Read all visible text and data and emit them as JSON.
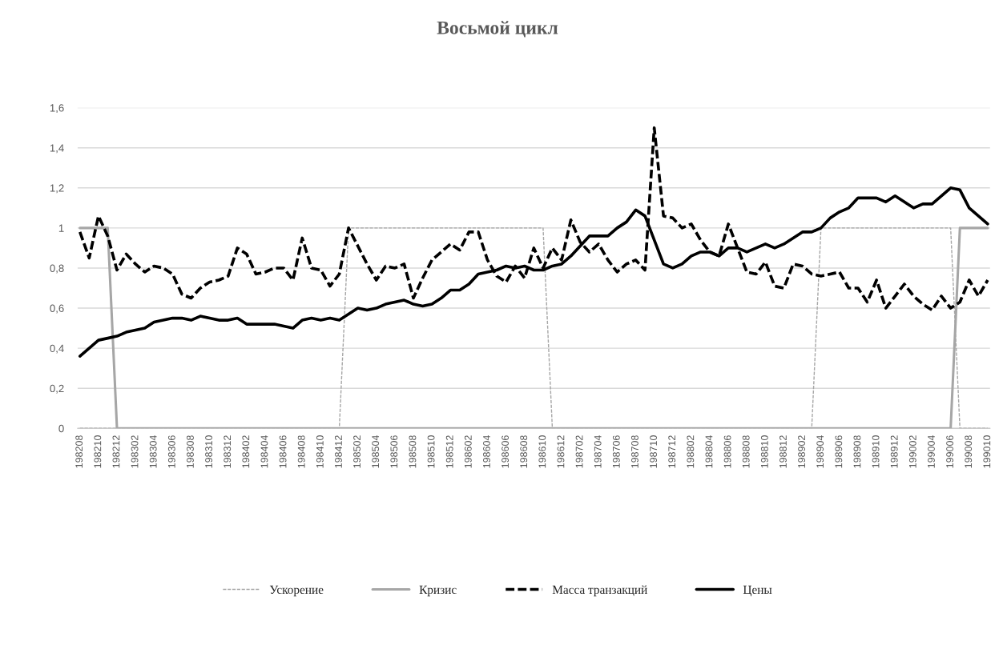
{
  "chart_data": {
    "type": "line",
    "title": "Восьмой цикл",
    "categories": [
      "198208",
      null,
      "198210",
      null,
      "198212",
      null,
      "198302",
      null,
      "198304",
      null,
      "198306",
      null,
      "198308",
      null,
      "198310",
      null,
      "198312",
      null,
      "198402",
      null,
      "198404",
      null,
      "198406",
      null,
      "198408",
      null,
      "198410",
      null,
      "198412",
      null,
      "198502",
      null,
      "198504",
      null,
      "198506",
      null,
      "198508",
      null,
      "198510",
      null,
      "198512",
      null,
      "198602",
      null,
      "198604",
      null,
      "198606",
      null,
      "198608",
      null,
      "198610",
      null,
      "198612",
      null,
      "198702",
      null,
      "198704",
      null,
      "198706",
      null,
      "198708",
      null,
      "198710",
      null,
      "198712",
      null,
      "198802",
      null,
      "198804",
      null,
      "198806",
      null,
      "198808",
      null,
      "198810",
      null,
      "198812",
      null,
      "198902",
      null,
      "198904",
      null,
      "198906",
      null,
      "198908",
      null,
      "198910",
      null,
      "198912",
      null,
      "199002",
      null,
      "199004",
      null,
      "199006",
      null,
      "199008",
      null,
      "199010"
    ],
    "series": [
      {
        "name": "Ускорение",
        "color": "#a6a6a6",
        "line_style": "dashed",
        "values": [
          0,
          0,
          0,
          0,
          0,
          0,
          0,
          0,
          0,
          0,
          0,
          0,
          0,
          0,
          0,
          0,
          0,
          0,
          0,
          0,
          0,
          0,
          0,
          0,
          0,
          0,
          0,
          0,
          0,
          1,
          1,
          1,
          1,
          1,
          1,
          1,
          1,
          1,
          1,
          1,
          1,
          1,
          1,
          1,
          1,
          1,
          1,
          1,
          1,
          1,
          1,
          0,
          0,
          0,
          0,
          0,
          0,
          0,
          0,
          0,
          0,
          0,
          0,
          0,
          0,
          0,
          0,
          0,
          0,
          0,
          0,
          0,
          0,
          0,
          0,
          0,
          0,
          0,
          0,
          0,
          1,
          1,
          1,
          1,
          1,
          1,
          1,
          1,
          1,
          1,
          1,
          1,
          1,
          1,
          1,
          0,
          0,
          0,
          0
        ]
      },
      {
        "name": "Кризис",
        "color": "#a6a6a6",
        "line_style": "solid",
        "values": [
          1,
          1,
          1,
          1,
          0,
          0,
          0,
          0,
          0,
          0,
          0,
          0,
          0,
          0,
          0,
          0,
          0,
          0,
          0,
          0,
          0,
          0,
          0,
          0,
          0,
          0,
          0,
          0,
          0,
          0,
          0,
          0,
          0,
          0,
          0,
          0,
          0,
          0,
          0,
          0,
          0,
          0,
          0,
          0,
          0,
          0,
          0,
          0,
          0,
          0,
          0,
          0,
          0,
          0,
          0,
          0,
          0,
          0,
          0,
          0,
          0,
          0,
          0,
          0,
          0,
          0,
          0,
          0,
          0,
          0,
          0,
          0,
          0,
          0,
          0,
          0,
          0,
          0,
          0,
          0,
          0,
          0,
          0,
          0,
          0,
          0,
          0,
          0,
          0,
          0,
          0,
          0,
          0,
          0,
          0,
          1,
          1,
          1,
          1
        ]
      },
      {
        "name": "Масса транзакций",
        "color": "#000000",
        "line_style": "dashed",
        "values": [
          0.98,
          0.85,
          1.06,
          0.96,
          0.79,
          0.87,
          0.82,
          0.78,
          0.81,
          0.8,
          0.77,
          0.67,
          0.65,
          0.7,
          0.73,
          0.74,
          0.76,
          0.9,
          0.87,
          0.77,
          0.78,
          0.8,
          0.8,
          0.74,
          0.95,
          0.8,
          0.79,
          0.71,
          0.77,
          1.0,
          0.91,
          0.82,
          0.74,
          0.81,
          0.8,
          0.82,
          0.65,
          0.75,
          0.84,
          0.88,
          0.92,
          0.89,
          0.98,
          0.98,
          0.84,
          0.76,
          0.73,
          0.81,
          0.75,
          0.9,
          0.8,
          0.9,
          0.84,
          1.04,
          0.93,
          0.88,
          0.92,
          0.84,
          0.78,
          0.82,
          0.84,
          0.79,
          1.5,
          1.06,
          1.05,
          1.0,
          1.02,
          0.94,
          0.88,
          0.86,
          1.02,
          0.9,
          0.78,
          0.77,
          0.83,
          0.71,
          0.7,
          0.82,
          0.81,
          0.77,
          0.76,
          0.77,
          0.78,
          0.7,
          0.7,
          0.63,
          0.74,
          0.6,
          0.66,
          0.72,
          0.66,
          0.62,
          0.59,
          0.66,
          0.6,
          0.63,
          0.74,
          0.66,
          0.74
        ]
      },
      {
        "name": "Цены",
        "color": "#000000",
        "line_style": "solid",
        "values": [
          0.36,
          0.4,
          0.44,
          0.45,
          0.46,
          0.48,
          0.49,
          0.5,
          0.53,
          0.54,
          0.55,
          0.55,
          0.54,
          0.56,
          0.55,
          0.54,
          0.54,
          0.55,
          0.52,
          0.52,
          0.52,
          0.52,
          0.51,
          0.5,
          0.54,
          0.55,
          0.54,
          0.55,
          0.54,
          0.57,
          0.6,
          0.59,
          0.6,
          0.62,
          0.63,
          0.64,
          0.62,
          0.61,
          0.62,
          0.65,
          0.69,
          0.69,
          0.72,
          0.77,
          0.78,
          0.79,
          0.81,
          0.8,
          0.81,
          0.79,
          0.79,
          0.81,
          0.82,
          0.86,
          0.91,
          0.96,
          0.96,
          0.96,
          1.0,
          1.03,
          1.09,
          1.06,
          0.94,
          0.82,
          0.8,
          0.82,
          0.86,
          0.88,
          0.88,
          0.86,
          0.9,
          0.9,
          0.88,
          0.9,
          0.92,
          0.9,
          0.92,
          0.95,
          0.98,
          0.98,
          1.0,
          1.05,
          1.08,
          1.1,
          1.15,
          1.15,
          1.15,
          1.13,
          1.16,
          1.13,
          1.1,
          1.12,
          1.12,
          1.16,
          1.2,
          1.19,
          1.1,
          1.06,
          1.02
        ]
      }
    ],
    "ylim": [
      0,
      1.6
    ],
    "yticks": [
      {
        "value": 0,
        "label": "0"
      },
      {
        "value": 0.2,
        "label": "0,2"
      },
      {
        "value": 0.4,
        "label": "0,4"
      },
      {
        "value": 0.6,
        "label": "0,6"
      },
      {
        "value": 0.8,
        "label": "0,8"
      },
      {
        "value": 1,
        "label": "1"
      },
      {
        "value": 1.2,
        "label": "1,2"
      },
      {
        "value": 1.4,
        "label": "1,4"
      },
      {
        "value": 1.6,
        "label": "1,6"
      }
    ],
    "grid": "y",
    "legend": "bottom",
    "marker": "none"
  }
}
